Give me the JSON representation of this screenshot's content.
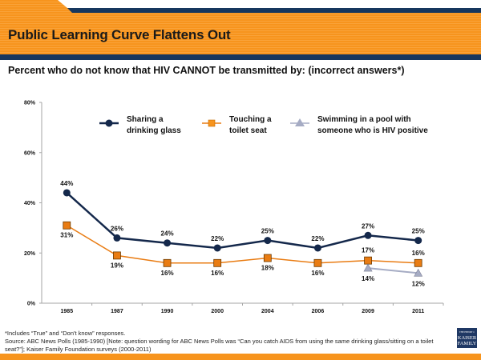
{
  "slide": {
    "title": "Public Learning Curve Flattens Out",
    "subtitle": "Percent who do not know that HIV CANNOT be transmitted by: (incorrect answers*)",
    "footnote": "*Includes “True” and “Don't know” responses.",
    "source": "Source: ABC News Polls (1985-1990) [Note: question wording for ABC News Polls was “Can you catch AIDS from using the same drinking glass/sitting on a toilet seat?”]; Kaiser Family Foundation surveys (2000-2011)",
    "logo": {
      "top": "THE HENRY J.",
      "line1": "KAISER",
      "line2": "FAMILY",
      "bottom": "FOUNDATION"
    },
    "colors": {
      "orange": "#f7941d",
      "navy": "#1b3a63"
    }
  },
  "chart_data": {
    "type": "line",
    "title": "",
    "xlabel": "",
    "ylabel": "",
    "categories": [
      "1985",
      "1987",
      "1990",
      "2000",
      "2004",
      "2006",
      "2009",
      "2011"
    ],
    "ylim": [
      0,
      80
    ],
    "yticks": [
      0,
      20,
      40,
      60,
      80
    ],
    "ytick_labels": [
      "0%",
      "20%",
      "40%",
      "60%",
      "80%"
    ],
    "grid": false,
    "legend_position": "top",
    "series": [
      {
        "name": "Sharing a drinking glass",
        "legend_lines": [
          "Sharing a",
          "drinking glass"
        ],
        "marker": "circle",
        "color": "#14284b",
        "values": [
          44,
          26,
          24,
          22,
          25,
          22,
          27,
          25
        ],
        "labels": [
          "44%",
          "26%",
          "24%",
          "22%",
          "25%",
          "22%",
          "27%",
          "25%"
        ]
      },
      {
        "name": "Touching a toilet seat",
        "legend_lines": [
          "Touching a",
          "toilet seat"
        ],
        "marker": "square",
        "color": "#e97c13",
        "values": [
          31,
          19,
          16,
          16,
          18,
          16,
          17,
          16
        ],
        "labels": [
          "31%",
          "19%",
          "16%",
          "16%",
          "18%",
          "16%",
          "17%",
          "16%"
        ]
      },
      {
        "name": "Swimming in a pool with someone who is HIV positive",
        "legend_lines": [
          "Swimming in a pool with",
          "someone who is HIV positive"
        ],
        "marker": "triangle",
        "color": "#a6acc4",
        "values": [
          null,
          null,
          null,
          null,
          null,
          null,
          14,
          12
        ],
        "labels": [
          null,
          null,
          null,
          null,
          null,
          null,
          "14%",
          "12%"
        ]
      }
    ]
  }
}
